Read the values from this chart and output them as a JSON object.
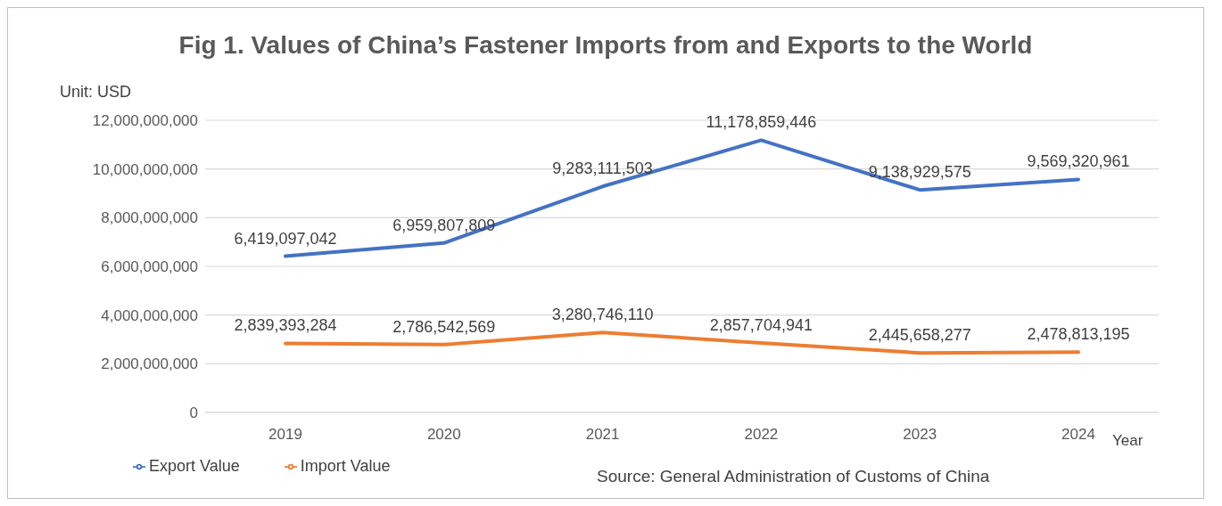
{
  "chart_data": {
    "type": "line",
    "title": "Fig 1. Values of China’s Fastener Imports from and Exports to the World",
    "ylabel": "Unit: USD",
    "xlabel": "Year",
    "categories": [
      "2019",
      "2020",
      "2021",
      "2022",
      "2023",
      "2024"
    ],
    "series": [
      {
        "name": "Export Value",
        "color": "#4472c4",
        "values": [
          6419097042,
          6959807809,
          9283111503,
          11178859446,
          9138929575,
          9569320961
        ],
        "value_labels": [
          "6,419,097,042",
          "6,959,807,809",
          "9,283,111,503",
          "11,178,859,446",
          "9,138,929,575",
          "9,569,320,961"
        ]
      },
      {
        "name": "Import Value",
        "color": "#ed7d31",
        "values": [
          2839393284,
          2786542569,
          3280746110,
          2857704941,
          2445658277,
          2478813195
        ],
        "value_labels": [
          "2,839,393,284",
          "2,786,542,569",
          "3,280,746,110",
          "2,857,704,941",
          "2,445,658,277",
          "2,478,813,195"
        ]
      }
    ],
    "ylim": [
      0,
      12000000000
    ],
    "yticks": [
      0,
      {
        "value": 2000000000,
        "label": "2,000,000,000"
      },
      {
        "value": 4000000000,
        "label": "4,000,000,000"
      },
      {
        "value": 6000000000,
        "label": "6,000,000,000"
      },
      {
        "value": 8000000000,
        "label": "8,000,000,000"
      },
      {
        "value": 10000000000,
        "label": "10,000,000,000"
      },
      {
        "value": 12000000000,
        "label": "12,000,000,000"
      }
    ],
    "grid": "y",
    "legend": "bottom",
    "marker": "none",
    "line_style": "solid",
    "annotations": [
      "Source: General Administration of Customs of China"
    ]
  }
}
